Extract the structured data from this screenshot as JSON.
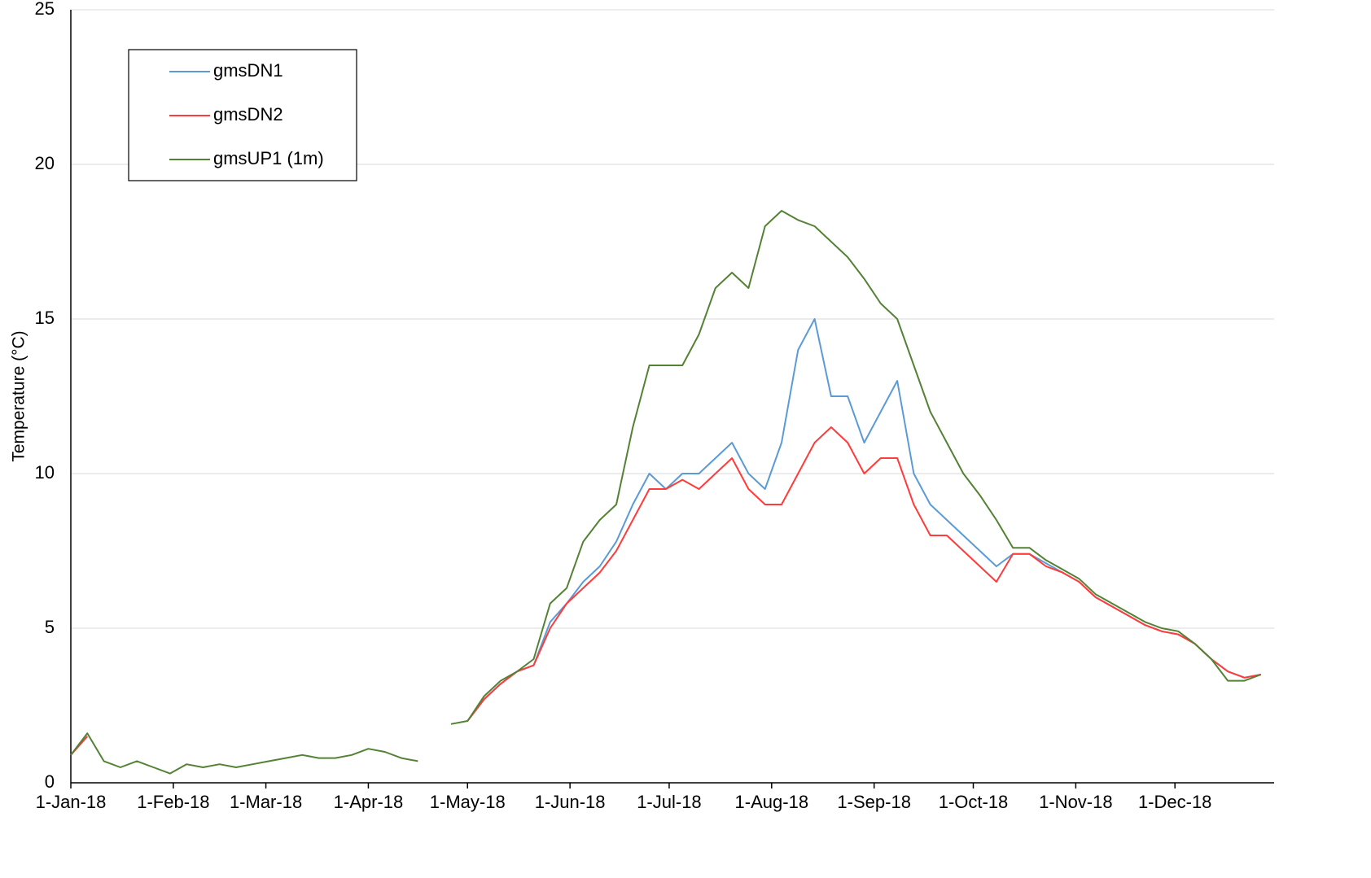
{
  "chart_data": {
    "type": "line",
    "ylabel": "Temperature (°C)",
    "x": [
      "2018-01-01",
      "2018-01-06",
      "2018-01-11",
      "2018-01-16",
      "2018-01-21",
      "2018-01-26",
      "2018-01-31",
      "2018-02-05",
      "2018-02-10",
      "2018-02-15",
      "2018-02-20",
      "2018-02-25",
      "2018-03-02",
      "2018-03-07",
      "2018-03-12",
      "2018-03-17",
      "2018-03-22",
      "2018-03-27",
      "2018-04-01",
      "2018-04-06",
      "2018-04-11",
      "2018-04-16",
      "2018-04-21",
      "2018-04-26",
      "2018-05-01",
      "2018-05-06",
      "2018-05-11",
      "2018-05-16",
      "2018-05-21",
      "2018-05-26",
      "2018-05-31",
      "2018-06-05",
      "2018-06-10",
      "2018-06-15",
      "2018-06-20",
      "2018-06-25",
      "2018-06-30",
      "2018-07-05",
      "2018-07-10",
      "2018-07-15",
      "2018-07-20",
      "2018-07-25",
      "2018-07-30",
      "2018-08-04",
      "2018-08-09",
      "2018-08-14",
      "2018-08-19",
      "2018-08-24",
      "2018-08-29",
      "2018-09-03",
      "2018-09-08",
      "2018-09-13",
      "2018-09-18",
      "2018-09-23",
      "2018-09-28",
      "2018-10-03",
      "2018-10-08",
      "2018-10-13",
      "2018-10-18",
      "2018-10-23",
      "2018-10-28",
      "2018-11-02",
      "2018-11-07",
      "2018-11-12",
      "2018-11-17",
      "2018-11-22",
      "2018-11-27",
      "2018-12-02",
      "2018-12-07",
      "2018-12-12",
      "2018-12-17",
      "2018-12-22",
      "2018-12-27"
    ],
    "series": [
      {
        "name": "gmsDN1",
        "color": "#5b9bd5",
        "values": [
          0.9,
          1.6,
          null,
          null,
          null,
          null,
          null,
          null,
          null,
          null,
          null,
          null,
          null,
          null,
          null,
          null,
          null,
          null,
          null,
          null,
          null,
          null,
          null,
          null,
          2.0,
          2.7,
          3.2,
          3.6,
          3.8,
          5.2,
          5.8,
          6.5,
          7.0,
          7.8,
          9.0,
          10.0,
          9.5,
          10.0,
          10.0,
          10.5,
          11.0,
          10.0,
          9.5,
          11.0,
          14.0,
          15.0,
          12.5,
          12.5,
          11.0,
          12.0,
          13.0,
          10.0,
          9.0,
          8.5,
          8.0,
          7.5,
          7.0,
          7.4,
          7.4,
          7.1,
          6.8,
          6.5,
          6.0,
          5.7,
          5.4,
          5.1,
          4.9,
          4.8,
          4.5,
          4.0,
          3.6,
          3.4,
          3.5
        ]
      },
      {
        "name": "gmsDN2",
        "color": "#ff3b3b",
        "values": [
          0.9,
          1.5,
          null,
          null,
          null,
          null,
          null,
          null,
          null,
          null,
          null,
          null,
          null,
          null,
          null,
          null,
          null,
          null,
          null,
          null,
          null,
          null,
          null,
          null,
          2.0,
          2.7,
          3.2,
          3.6,
          3.8,
          5.0,
          5.8,
          6.3,
          6.8,
          7.5,
          8.5,
          9.5,
          9.5,
          9.8,
          9.5,
          10.0,
          10.5,
          9.5,
          9.0,
          9.0,
          10.0,
          11.0,
          11.5,
          11.0,
          10.0,
          10.5,
          10.5,
          9.0,
          8.0,
          8.0,
          7.5,
          7.0,
          6.5,
          7.4,
          7.4,
          7.0,
          6.8,
          6.5,
          6.0,
          5.7,
          5.4,
          5.1,
          4.9,
          4.8,
          4.5,
          4.0,
          3.6,
          3.4,
          3.5
        ]
      },
      {
        "name": "gmsUP1 (1m)",
        "color": "#548235",
        "values": [
          0.9,
          1.6,
          0.7,
          0.5,
          0.7,
          0.5,
          0.3,
          0.6,
          0.5,
          0.6,
          0.5,
          0.6,
          0.7,
          0.8,
          0.9,
          0.8,
          0.8,
          0.9,
          1.1,
          1.0,
          0.8,
          0.7,
          null,
          1.9,
          2.0,
          2.8,
          3.3,
          3.6,
          4.0,
          5.8,
          6.3,
          7.8,
          8.5,
          9.0,
          11.5,
          13.5,
          13.5,
          13.5,
          14.5,
          16.0,
          16.5,
          16.0,
          18.0,
          18.5,
          18.2,
          18.0,
          17.5,
          17.0,
          16.3,
          15.5,
          15.0,
          13.5,
          12.0,
          11.0,
          10.0,
          9.3,
          8.5,
          7.6,
          7.6,
          7.2,
          6.9,
          6.6,
          6.1,
          5.8,
          5.5,
          5.2,
          5.0,
          4.9,
          4.5,
          4.0,
          3.3,
          3.3,
          3.5
        ]
      }
    ],
    "xlim": [
      "2018-01-01",
      "2018-12-31"
    ],
    "xticks": [
      {
        "value": "2018-01-01",
        "label": "1-Jan-18"
      },
      {
        "value": "2018-02-01",
        "label": "1-Feb-18"
      },
      {
        "value": "2018-03-01",
        "label": "1-Mar-18"
      },
      {
        "value": "2018-04-01",
        "label": "1-Apr-18"
      },
      {
        "value": "2018-05-01",
        "label": "1-May-18"
      },
      {
        "value": "2018-06-01",
        "label": "1-Jun-18"
      },
      {
        "value": "2018-07-01",
        "label": "1-Jul-18"
      },
      {
        "value": "2018-08-01",
        "label": "1-Aug-18"
      },
      {
        "value": "2018-09-01",
        "label": "1-Sep-18"
      },
      {
        "value": "2018-10-01",
        "label": "1-Oct-18"
      },
      {
        "value": "2018-11-01",
        "label": "1-Nov-18"
      },
      {
        "value": "2018-12-01",
        "label": "1-Dec-18"
      }
    ],
    "ylim": [
      0,
      25
    ],
    "yticks": [
      0,
      5,
      10,
      15,
      20,
      25
    ],
    "grid": true
  }
}
